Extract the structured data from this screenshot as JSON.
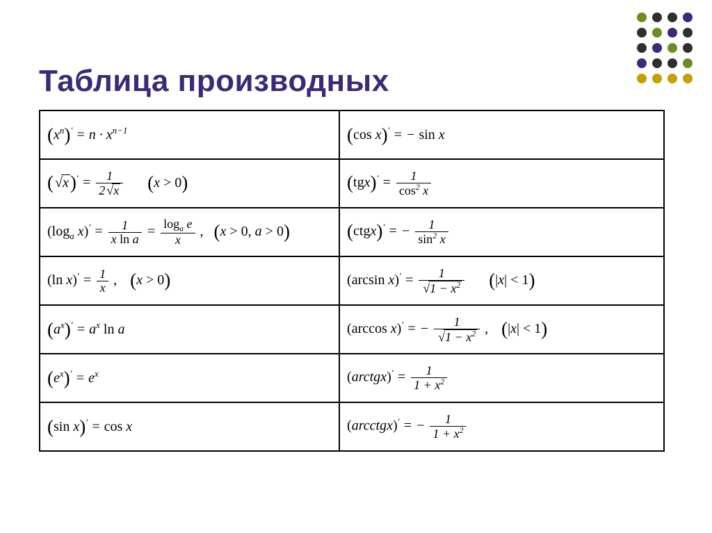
{
  "title": {
    "text": "Таблица производных",
    "color": "#3b2a78",
    "fontsize": 44
  },
  "dots": {
    "rows": 5,
    "cols": 4,
    "colors": [
      [
        "#6b8e23",
        "#2f2f2f",
        "#2f2f2f",
        "#3b2a78"
      ],
      [
        "#2f2f2f",
        "#6b8e23",
        "#3b2a78",
        "#2f2f2f"
      ],
      [
        "#2f2f2f",
        "#3b2a78",
        "#6b8e23",
        "#2f2f2f"
      ],
      [
        "#3b2a78",
        "#2f2f2f",
        "#2f2f2f",
        "#6b8e23"
      ],
      [
        "#c4a000",
        "#c4a000",
        "#c4a000",
        "#c4a000"
      ]
    ]
  },
  "table": {
    "border_color": "#000000",
    "rows": 8,
    "formulas": [
      {
        "left": "(x^n)' = n·x^{n-1}",
        "right": "(cos x)' = − sin x"
      },
      {
        "left": "(√x)' = 1 / (2√x)    (x > 0)",
        "right": "(tg x)' = 1 / cos² x"
      },
      {
        "left": "(logₐ x)' = 1/(x ln a) = logₐ e / x,  (x>0, a>0)",
        "right": "(ctg x)' = − 1 / sin² x"
      },
      {
        "left": "(ln x)' = 1/x,   (x > 0)",
        "right": "(arcsin x)' = 1 / √(1−x²)    (|x| < 1)"
      },
      {
        "left": "(aˣ)' = aˣ ln a",
        "right": "(arccos x)' = − 1 / √(1−x²),   (|x| < 1)"
      },
      {
        "left": "(eˣ)' = eˣ",
        "right": "(arctg x)' = 1 / (1 + x²)"
      },
      {
        "left": "(sin x)' = cos x",
        "right": "(arcctg x)' = − 1 / (1 + x²)"
      }
    ]
  },
  "background_color": "#ffffff"
}
